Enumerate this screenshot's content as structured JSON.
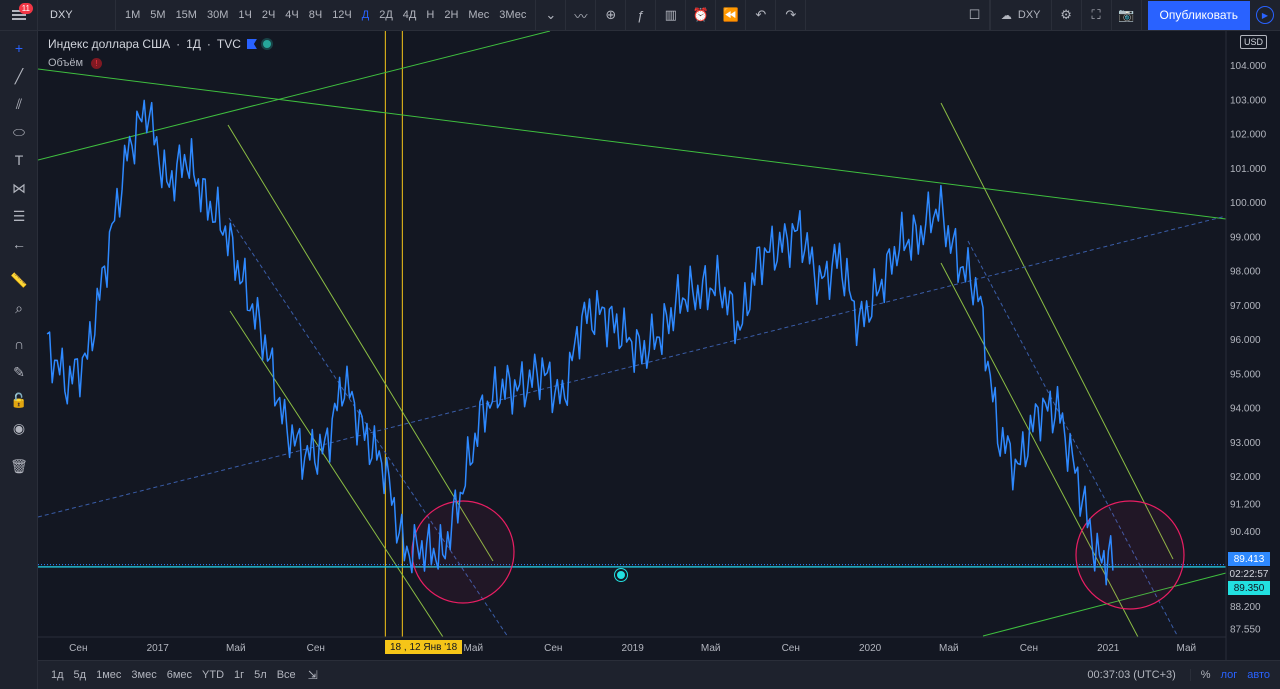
{
  "toolbar": {
    "notifications": "11",
    "symbol": "DXY",
    "intervals": [
      "1М",
      "5М",
      "15М",
      "30М",
      "1Ч",
      "2Ч",
      "4Ч",
      "8Ч",
      "12Ч",
      "Д",
      "2Д",
      "4Д",
      "Н",
      "2Н",
      "Мес",
      "3Мес"
    ],
    "active_interval": "Д",
    "layout_symbol": "DXY",
    "publish_label": "Опубликовать"
  },
  "legend": {
    "title": "Индекс доллара США",
    "interval": "1Д",
    "source": "TVC",
    "separator": "·",
    "volume_label": "Объём",
    "volume_warning": "!"
  },
  "price_scale": {
    "currency": "USD",
    "ticks": [
      "104.000",
      "103.000",
      "102.000",
      "101.000",
      "100.000",
      "99.000",
      "98.000",
      "97.000",
      "96.000",
      "95.000",
      "94.000",
      "93.000",
      "92.000",
      "91.200",
      "90.400",
      "88.200",
      "87.550"
    ],
    "last_price": "89.413",
    "countdown": "02:22:57",
    "line_price": "89.350"
  },
  "time_scale": {
    "labels": [
      "Сен",
      "2017",
      "Май",
      "Сен",
      "Май",
      "Сен",
      "2019",
      "Май",
      "Сен",
      "2020",
      "Май",
      "Сен",
      "2021",
      "Май"
    ],
    "crosshair_label": "18 , 12 Янв '18"
  },
  "bottom": {
    "ranges": [
      "1д",
      "5д",
      "1мес",
      "3мес",
      "6мес",
      "YTD",
      "1г",
      "5л",
      "Все"
    ],
    "clock": "00:37:03 (UTC+3)",
    "percent": "%",
    "log": "лог",
    "auto": "авто"
  },
  "colors": {
    "series": "#2e89ff",
    "trendline": "#3fbf3f",
    "channel": "#8bbd44",
    "midline": "#3a5da8",
    "crosshair": "#f5c518",
    "horizontal": "#22b8cf",
    "circle": "#e91e63",
    "background": "#131722"
  },
  "chart_data": {
    "type": "line",
    "title": "Индекс доллара США",
    "interval": "1Д",
    "ylim": [
      87.3,
      105.0
    ],
    "x_range": [
      "2016-07",
      "2021-07"
    ],
    "series": [
      {
        "name": "DXY",
        "x": [
          "2016-07",
          "2016-08",
          "2016-09",
          "2016-10",
          "2016-11",
          "2016-12",
          "2017-01",
          "2017-02",
          "2017-03",
          "2017-04",
          "2017-05",
          "2017-06",
          "2017-07",
          "2017-08",
          "2017-09",
          "2017-10",
          "2017-11",
          "2017-12",
          "2018-01",
          "2018-02",
          "2018-03",
          "2018-04",
          "2018-05",
          "2018-06",
          "2018-07",
          "2018-08",
          "2018-09",
          "2018-10",
          "2018-11",
          "2018-12",
          "2019-01",
          "2019-02",
          "2019-03",
          "2019-04",
          "2019-05",
          "2019-06",
          "2019-07",
          "2019-08",
          "2019-09",
          "2019-10",
          "2019-11",
          "2019-12",
          "2020-01",
          "2020-02",
          "2020-03",
          "2020-04",
          "2020-05",
          "2020-06",
          "2020-07",
          "2020-08",
          "2020-09",
          "2020-10",
          "2020-11",
          "2020-12"
        ],
        "values": [
          95.8,
          94.7,
          95.5,
          98.4,
          101.4,
          102.8,
          100.5,
          101.3,
          100.1,
          99.2,
          97.5,
          95.9,
          93.5,
          92.6,
          92.8,
          94.8,
          93.2,
          92.3,
          89.8,
          89.9,
          89.7,
          91.7,
          93.9,
          94.6,
          94.6,
          95.1,
          94.2,
          96.6,
          96.8,
          96.2,
          95.6,
          96.2,
          97.2,
          97.4,
          97.6,
          96.3,
          98.4,
          98.7,
          99.2,
          97.6,
          98.4,
          96.4,
          97.5,
          98.8,
          99.0,
          99.9,
          98.3,
          97.4,
          93.3,
          92.2,
          93.9,
          94.0,
          91.9,
          89.6
        ]
      }
    ]
  }
}
